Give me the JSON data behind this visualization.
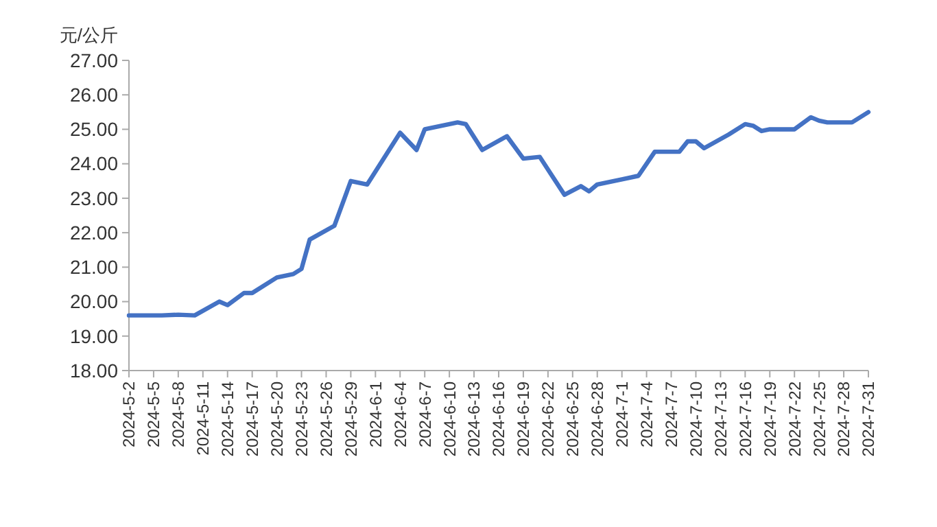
{
  "chart_data": {
    "type": "line",
    "ylabel": "元/公斤",
    "x": [
      "2024-05-02",
      "2024-05-06",
      "2024-05-08",
      "2024-05-10",
      "2024-05-13",
      "2024-05-14",
      "2024-05-16",
      "2024-05-17",
      "2024-05-20",
      "2024-05-22",
      "2024-05-23",
      "2024-05-24",
      "2024-05-27",
      "2024-05-29",
      "2024-05-31",
      "2024-06-04",
      "2024-06-06",
      "2024-06-07",
      "2024-06-11",
      "2024-06-12",
      "2024-06-14",
      "2024-06-17",
      "2024-06-19",
      "2024-06-21",
      "2024-06-24",
      "2024-06-26",
      "2024-06-27",
      "2024-06-28",
      "2024-07-01",
      "2024-07-03",
      "2024-07-05",
      "2024-07-08",
      "2024-07-09",
      "2024-07-10",
      "2024-07-11",
      "2024-07-14",
      "2024-07-16",
      "2024-07-17",
      "2024-07-18",
      "2024-07-19",
      "2024-07-22",
      "2024-07-24",
      "2024-07-25",
      "2024-07-26",
      "2024-07-29",
      "2024-07-31"
    ],
    "series": [
      {
        "color": "#4472c4",
        "values": [
          19.6,
          19.6,
          19.62,
          19.6,
          20.0,
          19.9,
          20.25,
          20.25,
          20.7,
          20.8,
          20.95,
          21.8,
          22.2,
          23.5,
          23.4,
          24.9,
          24.4,
          25.0,
          25.2,
          25.15,
          24.4,
          24.8,
          24.15,
          24.2,
          23.1,
          23.35,
          23.2,
          23.4,
          23.55,
          23.65,
          24.35,
          24.35,
          24.65,
          24.65,
          24.45,
          24.85,
          25.15,
          25.1,
          24.95,
          25.0,
          25.0,
          25.35,
          25.25,
          25.2,
          25.2,
          25.5
        ]
      }
    ],
    "xlim": [
      "2024-05-02",
      "2024-07-31"
    ],
    "xticks": [
      {
        "value": "2024-05-02",
        "label": "2024-5-2"
      },
      {
        "value": "2024-05-05",
        "label": "2024-5-5"
      },
      {
        "value": "2024-05-08",
        "label": "2024-5-8"
      },
      {
        "value": "2024-05-11",
        "label": "2024-5-11"
      },
      {
        "value": "2024-05-14",
        "label": "2024-5-14"
      },
      {
        "value": "2024-05-17",
        "label": "2024-5-17"
      },
      {
        "value": "2024-05-20",
        "label": "2024-5-20"
      },
      {
        "value": "2024-05-23",
        "label": "2024-5-23"
      },
      {
        "value": "2024-05-26",
        "label": "2024-5-26"
      },
      {
        "value": "2024-05-29",
        "label": "2024-5-29"
      },
      {
        "value": "2024-06-01",
        "label": "2024-6-1"
      },
      {
        "value": "2024-06-04",
        "label": "2024-6-4"
      },
      {
        "value": "2024-06-07",
        "label": "2024-6-7"
      },
      {
        "value": "2024-06-10",
        "label": "2024-6-10"
      },
      {
        "value": "2024-06-13",
        "label": "2024-6-13"
      },
      {
        "value": "2024-06-16",
        "label": "2024-6-16"
      },
      {
        "value": "2024-06-19",
        "label": "2024-6-19"
      },
      {
        "value": "2024-06-22",
        "label": "2024-6-22"
      },
      {
        "value": "2024-06-25",
        "label": "2024-6-25"
      },
      {
        "value": "2024-06-28",
        "label": "2024-6-28"
      },
      {
        "value": "2024-07-01",
        "label": "2024-7-1"
      },
      {
        "value": "2024-07-04",
        "label": "2024-7-4"
      },
      {
        "value": "2024-07-07",
        "label": "2024-7-7"
      },
      {
        "value": "2024-07-10",
        "label": "2024-7-10"
      },
      {
        "value": "2024-07-13",
        "label": "2024-7-13"
      },
      {
        "value": "2024-07-16",
        "label": "2024-7-16"
      },
      {
        "value": "2024-07-19",
        "label": "2024-7-19"
      },
      {
        "value": "2024-07-22",
        "label": "2024-7-22"
      },
      {
        "value": "2024-07-25",
        "label": "2024-7-25"
      },
      {
        "value": "2024-07-28",
        "label": "2024-7-28"
      },
      {
        "value": "2024-07-31",
        "label": "2024-7-31"
      }
    ],
    "ylim": [
      18,
      27
    ],
    "yticks": [
      {
        "value": 18,
        "label": "18.00"
      },
      {
        "value": 19,
        "label": "19.00"
      },
      {
        "value": 20,
        "label": "20.00"
      },
      {
        "value": 21,
        "label": "21.00"
      },
      {
        "value": 22,
        "label": "22.00"
      },
      {
        "value": 23,
        "label": "23.00"
      },
      {
        "value": 24,
        "label": "24.00"
      },
      {
        "value": 25,
        "label": "25.00"
      },
      {
        "value": 26,
        "label": "26.00"
      },
      {
        "value": 27,
        "label": "27.00"
      }
    ],
    "grid": false,
    "marker": "none",
    "line_style": "solid"
  }
}
